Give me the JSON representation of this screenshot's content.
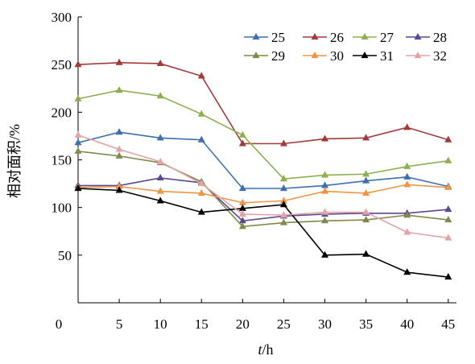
{
  "chart_data": {
    "type": "line",
    "title": "",
    "xlabel_italic": "t",
    "xlabel_rest": "/h",
    "ylabel": "相对面积/%",
    "x": [
      0,
      5,
      10,
      15,
      20,
      25,
      30,
      35,
      40,
      45
    ],
    "xticks": [
      5,
      10,
      15,
      20,
      25,
      30,
      35,
      40,
      45
    ],
    "xtick_labels": [
      "5",
      "10",
      "15",
      "20",
      "25",
      "30",
      "35",
      "40",
      "45"
    ],
    "origin_label": "0",
    "xlim": [
      0,
      46
    ],
    "ylim": [
      0,
      300
    ],
    "yticks": [
      50,
      100,
      150,
      200,
      250,
      300
    ],
    "ytick_labels": [
      "50",
      "100",
      "150",
      "200",
      "250",
      "300"
    ],
    "grid": false,
    "legend_position": "top-right",
    "series": [
      {
        "name": "25",
        "color": "#3E6FB0",
        "marker": "triangle",
        "values": [
          168,
          179,
          173,
          171,
          120,
          120,
          123,
          128,
          132,
          122
        ]
      },
      {
        "name": "26",
        "color": "#A33A3A",
        "marker": "triangle",
        "values": [
          250,
          252,
          251,
          238,
          167,
          167,
          172,
          173,
          184,
          171
        ]
      },
      {
        "name": "27",
        "color": "#8DAF4E",
        "marker": "triangle",
        "values": [
          214,
          223,
          217,
          198,
          176,
          130,
          134,
          135,
          143,
          149
        ]
      },
      {
        "name": "28",
        "color": "#5C4890",
        "marker": "triangle",
        "values": [
          123,
          123,
          131,
          126,
          86,
          91,
          93,
          94,
          94,
          98
        ]
      },
      {
        "name": "29",
        "color": "#7F8B4A",
        "marker": "triangle",
        "values": [
          159,
          154,
          147,
          127,
          80,
          84,
          86,
          87,
          92,
          87
        ]
      },
      {
        "name": "30",
        "color": "#F09545",
        "marker": "triangle",
        "values": [
          121,
          122,
          117,
          115,
          105,
          107,
          117,
          115,
          124,
          121
        ]
      },
      {
        "name": "31",
        "color": "#000000",
        "marker": "triangle",
        "values": [
          120,
          118,
          107,
          95,
          99,
          103,
          50,
          51,
          32,
          27
        ]
      },
      {
        "name": "32",
        "color": "#E3A3A8",
        "marker": "triangle",
        "values": [
          176,
          161,
          148,
          125,
          93,
          92,
          95,
          95,
          74,
          68
        ]
      }
    ]
  }
}
